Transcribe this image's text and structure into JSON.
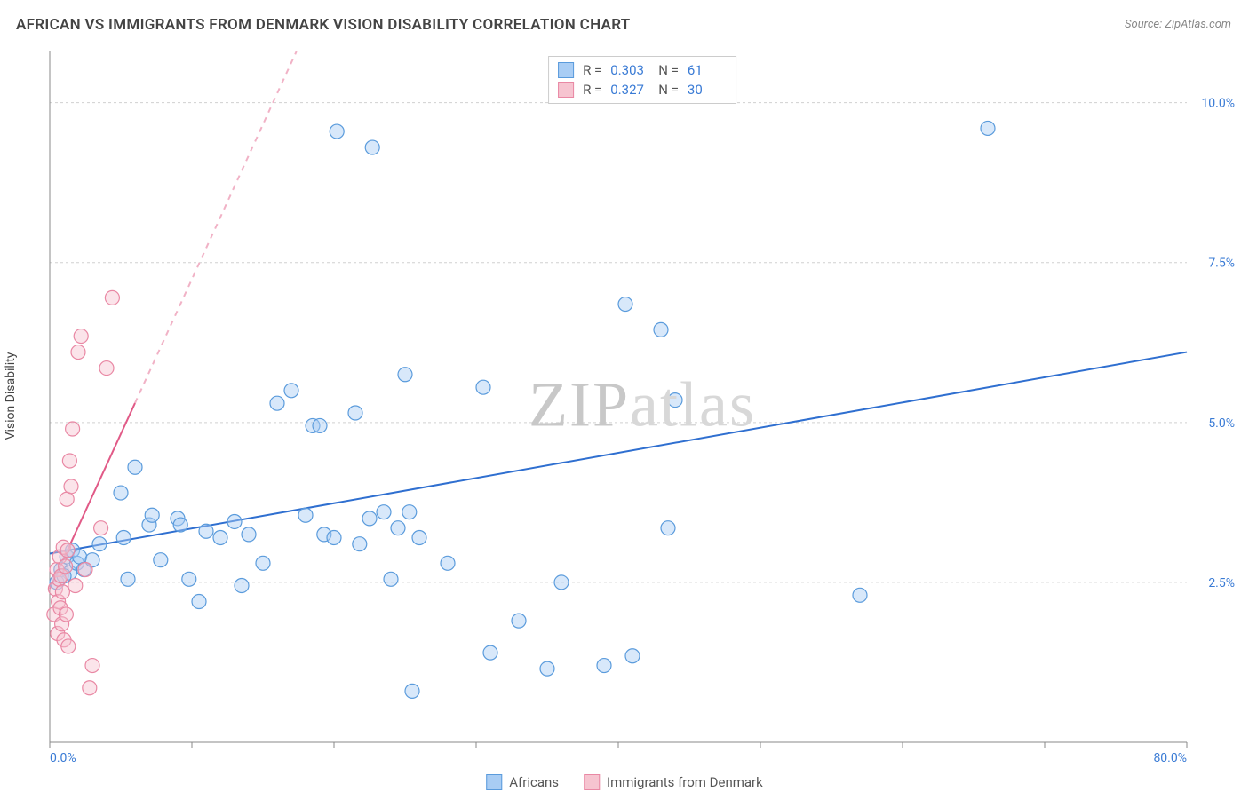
{
  "title": "AFRICAN VS IMMIGRANTS FROM DENMARK VISION DISABILITY CORRELATION CHART",
  "source": "Source: ZipAtlas.com",
  "watermark_zip": "ZIP",
  "watermark_atlas": "atlas",
  "y_axis_label": "Vision Disability",
  "chart": {
    "type": "scatter",
    "background_color": "#ffffff",
    "grid_color": "#d0d0d0",
    "axis_color": "#888888",
    "tick_label_color": "#3a7bd5",
    "tick_label_fontsize": 14,
    "xlim": [
      0,
      80
    ],
    "ylim": [
      0,
      10.8
    ],
    "x_ticks": [
      0,
      10,
      20,
      30,
      40,
      50,
      60,
      70,
      80
    ],
    "x_tick_labels": {
      "0": "0.0%",
      "80": "80.0%"
    },
    "y_ticks": [
      2.5,
      5.0,
      7.5,
      10.0
    ],
    "y_tick_labels": [
      "2.5%",
      "5.0%",
      "7.5%",
      "10.0%"
    ],
    "marker_radius": 8,
    "marker_fill_opacity": 0.45,
    "marker_stroke_width": 1.2,
    "series": [
      {
        "name": "Africans",
        "color_fill": "#a9cdf4",
        "color_stroke": "#5a9bdc",
        "R": "0.303",
        "N": "61",
        "trend": {
          "x1": 0,
          "y1": 2.95,
          "x2": 80,
          "y2": 6.1,
          "solid_until_x": 80,
          "stroke": "#2f6fd0",
          "stroke_width": 2
        },
        "points": [
          [
            0.5,
            2.5
          ],
          [
            0.8,
            2.7
          ],
          [
            1.2,
            2.9
          ],
          [
            1.4,
            2.65
          ],
          [
            1.6,
            3.0
          ],
          [
            1.9,
            2.8
          ],
          [
            2.1,
            2.9
          ],
          [
            2.4,
            2.7
          ],
          [
            3.0,
            2.85
          ],
          [
            3.5,
            3.1
          ],
          [
            5.0,
            3.9
          ],
          [
            5.2,
            3.2
          ],
          [
            5.5,
            2.55
          ],
          [
            6.0,
            4.3
          ],
          [
            7.0,
            3.4
          ],
          [
            7.2,
            3.55
          ],
          [
            7.8,
            2.85
          ],
          [
            9.0,
            3.5
          ],
          [
            9.2,
            3.4
          ],
          [
            9.8,
            2.55
          ],
          [
            10.5,
            2.2
          ],
          [
            11.0,
            3.3
          ],
          [
            12.0,
            3.2
          ],
          [
            13.0,
            3.45
          ],
          [
            13.5,
            2.45
          ],
          [
            14.0,
            3.25
          ],
          [
            15.0,
            2.8
          ],
          [
            16.0,
            5.3
          ],
          [
            17.0,
            5.5
          ],
          [
            18.0,
            3.55
          ],
          [
            18.5,
            4.95
          ],
          [
            19.0,
            4.95
          ],
          [
            19.3,
            3.25
          ],
          [
            20.0,
            3.2
          ],
          [
            20.2,
            9.55
          ],
          [
            21.5,
            5.15
          ],
          [
            21.8,
            3.1
          ],
          [
            22.5,
            3.5
          ],
          [
            22.7,
            9.3
          ],
          [
            23.5,
            3.6
          ],
          [
            24.0,
            2.55
          ],
          [
            24.5,
            3.35
          ],
          [
            25.0,
            5.75
          ],
          [
            25.3,
            3.6
          ],
          [
            25.5,
            0.8
          ],
          [
            26.0,
            3.2
          ],
          [
            28.0,
            2.8
          ],
          [
            30.5,
            5.55
          ],
          [
            31.0,
            1.4
          ],
          [
            33.0,
            1.9
          ],
          [
            35.0,
            1.15
          ],
          [
            36.0,
            2.5
          ],
          [
            39.0,
            1.2
          ],
          [
            40.5,
            6.85
          ],
          [
            41.0,
            1.35
          ],
          [
            43.0,
            6.45
          ],
          [
            43.5,
            3.35
          ],
          [
            44.0,
            5.35
          ],
          [
            57.0,
            2.3
          ],
          [
            66.0,
            9.6
          ],
          [
            1.0,
            2.6
          ]
        ]
      },
      {
        "name": "Immigrants from Denmark",
        "color_fill": "#f6c4d0",
        "color_stroke": "#e988a4",
        "R": "0.327",
        "N": "30",
        "trend": {
          "x1": 0,
          "y1": 2.4,
          "x2": 25,
          "y2": 14.5,
          "solid_until_x": 6,
          "stroke": "#e15a87",
          "stroke_width": 2,
          "dashed_stroke": "#f1b2c6"
        },
        "points": [
          [
            0.3,
            2.0
          ],
          [
            0.4,
            2.4
          ],
          [
            0.5,
            2.7
          ],
          [
            0.55,
            1.7
          ],
          [
            0.6,
            2.2
          ],
          [
            0.65,
            2.55
          ],
          [
            0.7,
            2.9
          ],
          [
            0.75,
            2.1
          ],
          [
            0.8,
            2.6
          ],
          [
            0.85,
            1.85
          ],
          [
            0.9,
            2.35
          ],
          [
            0.95,
            3.05
          ],
          [
            1.0,
            1.6
          ],
          [
            1.1,
            2.75
          ],
          [
            1.15,
            2.0
          ],
          [
            1.2,
            3.8
          ],
          [
            1.25,
            3.0
          ],
          [
            1.3,
            1.5
          ],
          [
            1.4,
            4.4
          ],
          [
            1.5,
            4.0
          ],
          [
            1.6,
            4.9
          ],
          [
            1.8,
            2.45
          ],
          [
            2.0,
            6.1
          ],
          [
            2.2,
            6.35
          ],
          [
            2.5,
            2.7
          ],
          [
            2.8,
            0.85
          ],
          [
            3.0,
            1.2
          ],
          [
            3.6,
            3.35
          ],
          [
            4.0,
            5.85
          ],
          [
            4.4,
            6.95
          ]
        ]
      }
    ],
    "bottom_legend": [
      {
        "swatch_fill": "#a9cdf4",
        "swatch_stroke": "#5a9bdc",
        "label": "Africans"
      },
      {
        "swatch_fill": "#f6c4d0",
        "swatch_stroke": "#e988a4",
        "label": "Immigrants from Denmark"
      }
    ]
  }
}
